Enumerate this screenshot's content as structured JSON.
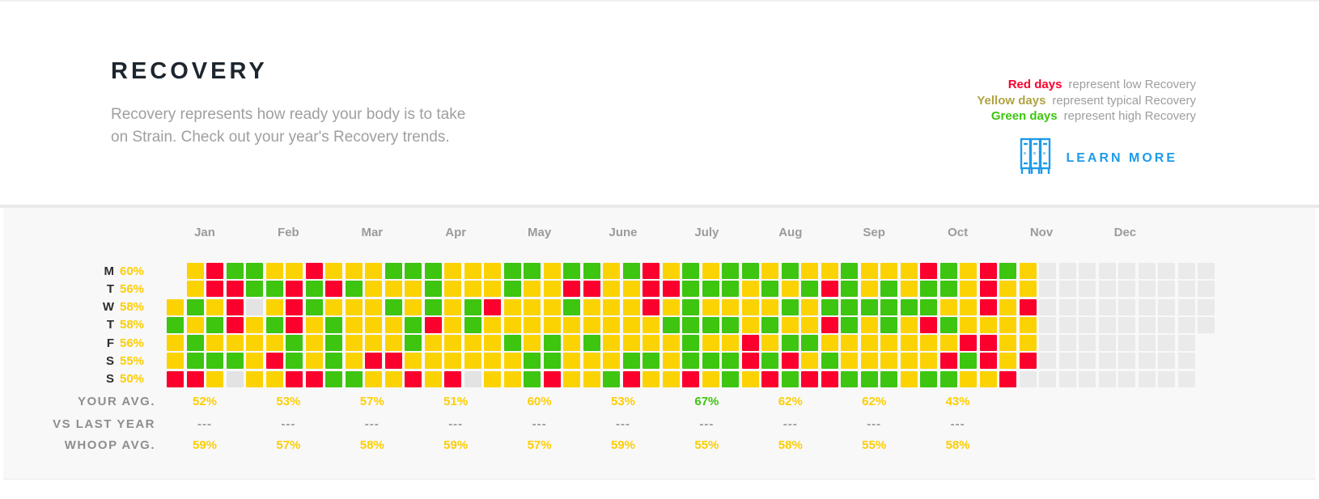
{
  "header": {
    "title": "RECOVERY",
    "description": "Recovery represents how ready your body is to take on Strain. Check out your year's Recovery trends.",
    "legend": [
      {
        "term": "Red days",
        "color": "#fb002d",
        "rest": "represent low Recovery"
      },
      {
        "term": "Yellow days",
        "color": "#b0a345",
        "rest": "represent typical Recovery"
      },
      {
        "term": "Green days",
        "color": "#3dc510",
        "rest": "represent high Recovery"
      }
    ],
    "learn_more_label": "LEARN MORE",
    "accent_blue": "#1e9be9"
  },
  "chart_data": {
    "type": "heatmap",
    "title": "RECOVERY",
    "months": [
      "Jan",
      "Feb",
      "Mar",
      "Apr",
      "May",
      "June",
      "July",
      "Aug",
      "Sep",
      "Oct",
      "Nov",
      "Dec"
    ],
    "day_rows": [
      {
        "day": "M",
        "avg": "60%"
      },
      {
        "day": "T",
        "avg": "56%"
      },
      {
        "day": "W",
        "avg": "58%"
      },
      {
        "day": "T",
        "avg": "58%"
      },
      {
        "day": "F",
        "avg": "56%"
      },
      {
        "day": "S",
        "avg": "55%"
      },
      {
        "day": "S",
        "avg": "50%"
      }
    ],
    "color_key": {
      "Y": {
        "meaning": "typical recovery",
        "hex": "#fcd302"
      },
      "G": {
        "meaning": "high recovery",
        "hex": "#3dc510"
      },
      "R": {
        "meaning": "low recovery",
        "hex": "#fb002d"
      },
      "E": {
        "meaning": "future / no data",
        "hex": "#eaeaea"
      },
      "X": {
        "meaning": "missing day",
        "hex": "#e3e3e3"
      },
      "N": {
        "meaning": "blank (outside year)",
        "hex": "transparent"
      }
    },
    "cells": [
      "NYRGGYYRYYYGGGYYYGGYGGYGRYGYGGYGYYGYYYRGYRGYEEEEEEEEE",
      "NYRRGGRGRGYYYGYYYGYYRRYYRRGGGYGYGRGYGYGGYRYYEEEEEEEEE",
      "YGYRXYRGYYYGYGYGRYYYGYYYRYGYYYYGYGGGGGGYYRYREEEEEEEEE",
      "GYGRYGRYGYYYGRYGYYYYYYYYYGGGGYGYYRGYGYRGYYYYEEEEEEEEE",
      "YGYYYYGYGYYYGYYYYGYGYGYYYYGYYRYGGYYYYYYYRRYYEEEEEEEEN",
      "YGGGYRGYGYRRYYYYYYGGYYYGGYGGGRGRYGYYYYYRGRYREEEEEEEEN",
      "RRYXYYRRGGYYRYRXYYGRYYGRYYRYGYRGRRGGGYGGYYREEEEEEEEEN"
    ],
    "stats": {
      "rows": [
        {
          "label": "YOUR AVG.",
          "values": [
            {
              "t": "52%",
              "c": "y"
            },
            {
              "t": "53%",
              "c": "y"
            },
            {
              "t": "57%",
              "c": "y"
            },
            {
              "t": "51%",
              "c": "y"
            },
            {
              "t": "60%",
              "c": "y"
            },
            {
              "t": "53%",
              "c": "y"
            },
            {
              "t": "67%",
              "c": "g"
            },
            {
              "t": "62%",
              "c": "y"
            },
            {
              "t": "62%",
              "c": "y"
            },
            {
              "t": "43%",
              "c": "y"
            }
          ]
        },
        {
          "label": "VS LAST YEAR",
          "values": [
            {
              "t": "---",
              "c": "d"
            },
            {
              "t": "---",
              "c": "d"
            },
            {
              "t": "---",
              "c": "d"
            },
            {
              "t": "---",
              "c": "d"
            },
            {
              "t": "---",
              "c": "d"
            },
            {
              "t": "---",
              "c": "d"
            },
            {
              "t": "---",
              "c": "d"
            },
            {
              "t": "---",
              "c": "d"
            },
            {
              "t": "---",
              "c": "d"
            },
            {
              "t": "---",
              "c": "d"
            }
          ]
        },
        {
          "label": "WHOOP AVG.",
          "values": [
            {
              "t": "59%",
              "c": "y"
            },
            {
              "t": "57%",
              "c": "y"
            },
            {
              "t": "58%",
              "c": "y"
            },
            {
              "t": "59%",
              "c": "y"
            },
            {
              "t": "57%",
              "c": "y"
            },
            {
              "t": "59%",
              "c": "y"
            },
            {
              "t": "55%",
              "c": "y"
            },
            {
              "t": "58%",
              "c": "y"
            },
            {
              "t": "55%",
              "c": "y"
            },
            {
              "t": "58%",
              "c": "y"
            }
          ]
        }
      ]
    },
    "layout": {
      "grid_columns": 53,
      "grid_rows": 7,
      "legend_position": "top-right",
      "grid_lines": false
    }
  }
}
